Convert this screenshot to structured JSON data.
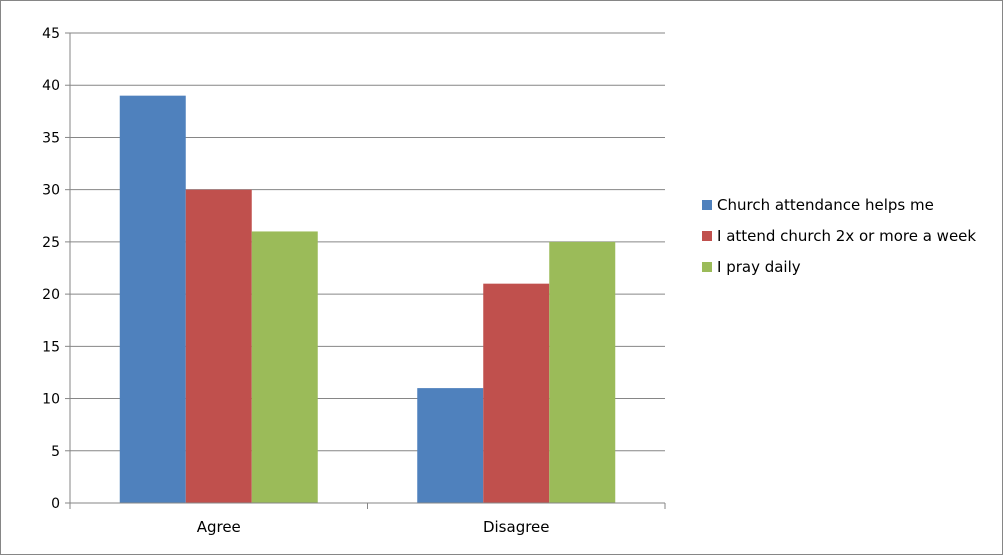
{
  "chart_data": {
    "type": "bar",
    "categories": [
      "Agree",
      "Disagree"
    ],
    "series": [
      {
        "name": "Church attendance helps me",
        "values": [
          39,
          11
        ],
        "color": "#4F81BD"
      },
      {
        "name": "I attend church 2x or more a week",
        "values": [
          30,
          21
        ],
        "color": "#C0504D"
      },
      {
        "name": "I pray daily",
        "values": [
          26,
          25
        ],
        "color": "#9BBB59"
      }
    ],
    "ylim": [
      0,
      45
    ],
    "yticks": [
      0,
      5,
      10,
      15,
      20,
      25,
      30,
      35,
      40,
      45
    ],
    "grid": true,
    "legend_position": "right",
    "title": "",
    "xlabel": "",
    "ylabel": ""
  }
}
